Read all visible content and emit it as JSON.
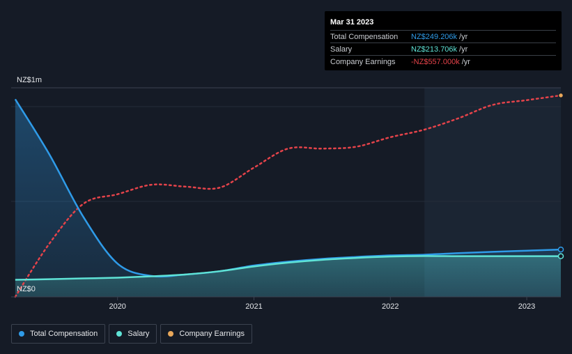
{
  "tooltip": {
    "date": "Mar 31 2023",
    "rows": [
      {
        "label": "Total Compensation",
        "value": "NZ$249.206k",
        "unit": "/yr"
      },
      {
        "label": "Salary",
        "value": "NZ$213.706k",
        "unit": "/yr"
      },
      {
        "label": "Company Earnings",
        "value": "-NZ$557.000k",
        "unit": "/yr"
      }
    ]
  },
  "legend": {
    "total_compensation": "Total Compensation",
    "salary": "Salary",
    "company_earnings": "Company Earnings"
  },
  "colors": {
    "total_compensation": "#2f9be8",
    "salary": "#5fe3d6",
    "company_earnings": "#e8a75a",
    "earnings_line": "#e5434a",
    "negative_value": "#e5434a"
  },
  "chart_data": {
    "type": "line",
    "title": "",
    "y_axis_labels": [
      "NZ$1m",
      "NZ$0"
    ],
    "x_tick_labels": [
      "2020",
      "2021",
      "2022",
      "2023"
    ],
    "x_ticks": [
      2020,
      2021,
      2022,
      2023
    ],
    "xlim": [
      2019.22,
      2023.25
    ],
    "ylim": [
      0,
      1100
    ],
    "forecast_start": 2022.25,
    "series": [
      {
        "name": "Total Compensation",
        "key": "total_compensation",
        "style": "solid",
        "x": [
          2019.25,
          2019.5,
          2019.75,
          2020.0,
          2020.25,
          2020.5,
          2020.75,
          2021.0,
          2021.25,
          2021.5,
          2021.75,
          2022.0,
          2022.25,
          2022.5,
          2022.75,
          2023.0,
          2023.25
        ],
        "values": [
          1040,
          750,
          420,
          175,
          110,
          118,
          135,
          165,
          185,
          200,
          210,
          218,
          222,
          230,
          237,
          243,
          249
        ]
      },
      {
        "name": "Salary",
        "key": "salary",
        "style": "solid",
        "x": [
          2019.25,
          2019.5,
          2019.75,
          2020.0,
          2020.25,
          2020.5,
          2020.75,
          2021.0,
          2021.25,
          2021.5,
          2021.75,
          2022.0,
          2022.25,
          2022.5,
          2022.75,
          2023.0,
          2023.25
        ],
        "values": [
          90,
          93,
          97,
          101,
          108,
          118,
          135,
          160,
          180,
          195,
          205,
          212,
          215,
          214,
          214,
          214,
          214
        ]
      },
      {
        "name": "Company Earnings",
        "key": "company_earnings",
        "style": "dotted",
        "x": [
          2019.25,
          2019.5,
          2019.75,
          2020.0,
          2020.25,
          2020.5,
          2020.75,
          2021.0,
          2021.25,
          2021.5,
          2021.75,
          2022.0,
          2022.25,
          2022.5,
          2022.75,
          2023.0,
          2023.25
        ],
        "values": [
          0,
          280,
          490,
          540,
          590,
          580,
          575,
          680,
          780,
          780,
          790,
          840,
          880,
          940,
          1010,
          1035,
          1060
        ]
      }
    ]
  }
}
